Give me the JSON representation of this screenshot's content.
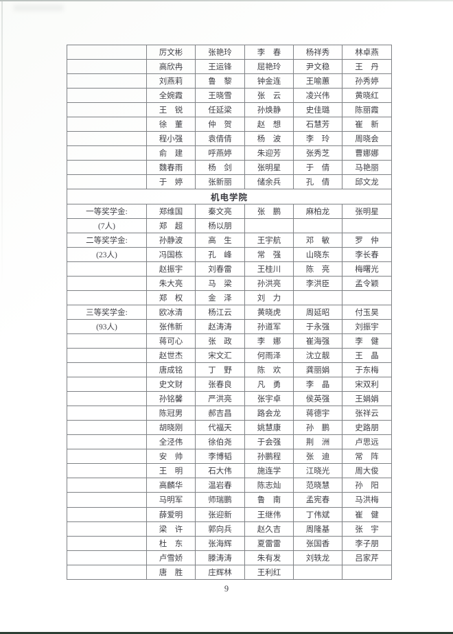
{
  "page": {
    "number": "9"
  },
  "colors": {
    "table_border": "#7d8084",
    "text": "#404046",
    "bottom_scan_edge": "#2c3e33"
  },
  "table": {
    "section_header": "机电学院",
    "award_tiers": [
      {
        "label": "一等奖学金:",
        "count_label": "(7人)"
      },
      {
        "label": "二等奖学金:",
        "count_label": "(23人)"
      },
      {
        "label": "三等奖学金:",
        "count_label": "(93人)"
      }
    ],
    "rows": [
      {
        "cells": [
          "",
          "厉文彬",
          "张艳玲",
          "李　春",
          "杨祥秀",
          "林卓燕"
        ]
      },
      {
        "cells": [
          "",
          "高欣冉",
          "王运锋",
          "屈艳玲",
          "尹文稳",
          "王　丹"
        ]
      },
      {
        "cells": [
          "",
          "刘燕莉",
          "鲁　黎",
          "钟金连",
          "王喻蕙",
          "孙秀婷"
        ]
      },
      {
        "cells": [
          "",
          "全婉霞",
          "王晓雪",
          "张　云",
          "凌兴伟",
          "黄晓红"
        ]
      },
      {
        "cells": [
          "",
          "王　锐",
          "任延梁",
          "孙焕静",
          "史佳璐",
          "陈丽霞"
        ]
      },
      {
        "cells": [
          "",
          "徐　董",
          "仲　贺",
          "赵　想",
          "石慧芳",
          "崔　新"
        ]
      },
      {
        "cells": [
          "",
          "程小强",
          "袁倩倩",
          "杨　波",
          "李　玲",
          "周晓会"
        ]
      },
      {
        "cells": [
          "",
          "俞　建",
          "呼燕婷",
          "朱迎芳",
          "张秀芝",
          "曹娜娜"
        ]
      },
      {
        "cells": [
          "",
          "魏春雨",
          "杨　剑",
          "张明星",
          "于　倩",
          "马艳丽"
        ]
      },
      {
        "cells": [
          "",
          "于　婷",
          "张新丽",
          "储余兵",
          "孔　倩",
          "邱文龙"
        ]
      },
      {
        "merged": "机电学院"
      },
      {
        "cells": [
          "一等奖学金:",
          "郑维国",
          "秦文亮",
          "张　鹏",
          "麻柏龙",
          "张明星"
        ]
      },
      {
        "cells": [
          "(7人)",
          "郑　超",
          "杨以朋",
          "",
          "",
          ""
        ]
      },
      {
        "cells": [
          "二等奖学金:",
          "孙静波",
          "高　生",
          "王宇航",
          "邓　敏",
          "罗　仲"
        ]
      },
      {
        "cells": [
          "(23人)",
          "冯国栋",
          "孔　峰",
          "常　强",
          "山晓东",
          "李长春"
        ]
      },
      {
        "cells": [
          "",
          "赵振宇",
          "刘春雷",
          "王桂川",
          "陈　亮",
          "梅曙光"
        ]
      },
      {
        "cells": [
          "",
          "朱大亮",
          "马　梁",
          "孙洪亮",
          "李洪臣",
          "孟令颖"
        ]
      },
      {
        "cells": [
          "",
          "郑　权",
          "金　泽",
          "刘　力",
          "",
          ""
        ]
      },
      {
        "cells": [
          "三等奖学金:",
          "欧冰清",
          "杨江云",
          "黄晓虎",
          "周延昭",
          "付玉昊"
        ]
      },
      {
        "cells": [
          "(93人)",
          "张伟新",
          "赵涛涛",
          "孙道军",
          "于永强",
          "刘振宇"
        ]
      },
      {
        "cells": [
          "",
          "蒋可心",
          "张　政",
          "李　娜",
          "崔海强",
          "李　健"
        ]
      },
      {
        "cells": [
          "",
          "赵世杰",
          "宋文汇",
          "何雨泽",
          "沈立靓",
          "王　晶"
        ]
      },
      {
        "cells": [
          "",
          "唐成铭",
          "丁　野",
          "陈　欢",
          "龚丽娟",
          "于东梅"
        ]
      },
      {
        "cells": [
          "",
          "史文财",
          "张春良",
          "凡　勇",
          "李　晶",
          "宋双利"
        ]
      },
      {
        "cells": [
          "",
          "孙铭馨",
          "严洪亮",
          "张宇卓",
          "侯英强",
          "王娟娟"
        ]
      },
      {
        "cells": [
          "",
          "陈冠男",
          "郝吉昌",
          "路会龙",
          "蒋德宇",
          "张祥云"
        ]
      },
      {
        "cells": [
          "",
          "胡晓刚",
          "代福天",
          "姚慧康",
          "孙　鹏",
          "史路朋"
        ]
      },
      {
        "cells": [
          "",
          "全泾伟",
          "徐伯尧",
          "于会强",
          "荆　洲",
          "卢思远"
        ]
      },
      {
        "cells": [
          "",
          "安　帅",
          "李博韬",
          "孙鹏程",
          "张　迪",
          "常　阵"
        ]
      },
      {
        "cells": [
          "",
          "王　明",
          "石大伟",
          "施连学",
          "江晓光",
          "周大俊"
        ]
      },
      {
        "cells": [
          "",
          "高麟华",
          "温岩春",
          "陈志灿",
          "范晓慧",
          "孙　阳"
        ]
      },
      {
        "cells": [
          "",
          "马明军",
          "师瑞鹏",
          "鲁　南",
          "孟宪春",
          "马洪梅"
        ]
      },
      {
        "cells": [
          "",
          "薛爱明",
          "张迎新",
          "王继伟",
          "丁伟斌",
          "崔　健"
        ]
      },
      {
        "cells": [
          "",
          "梁　许",
          "郭向兵",
          "赵久吉",
          "周隆基",
          "张　宇"
        ]
      },
      {
        "cells": [
          "",
          "杜　东",
          "张海辉",
          "夏雷雷",
          "张国香",
          "李子朋"
        ]
      },
      {
        "cells": [
          "",
          "卢雪娇",
          "滕涛涛",
          "朱有发",
          "刘轶龙",
          "吕家芹"
        ]
      },
      {
        "cells": [
          "",
          "唐　胜",
          "庄辉林",
          "王利红",
          "",
          ""
        ]
      }
    ]
  }
}
